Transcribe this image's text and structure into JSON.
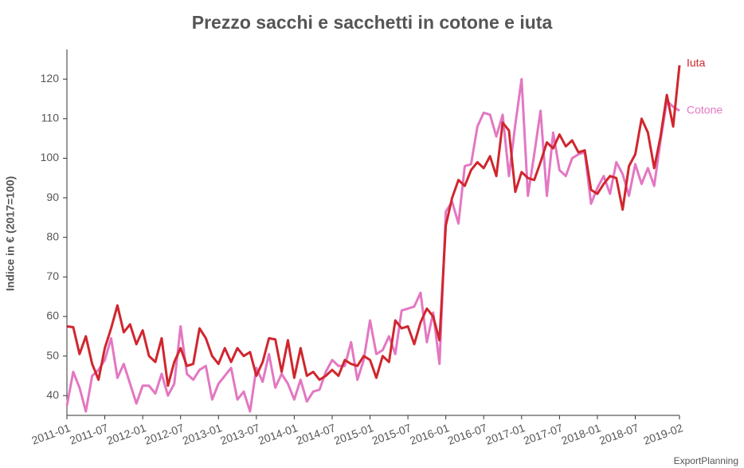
{
  "chart_data": {
    "type": "line",
    "title": "Prezzo sacchi e sacchetti in cotone e iuta",
    "y_label": "Indice in € (2017=100)",
    "credit": "ExportPlanning",
    "categories": [
      "2011-01",
      null,
      null,
      null,
      null,
      null,
      "2011-07",
      null,
      null,
      null,
      null,
      null,
      "2012-01",
      null,
      null,
      null,
      null,
      null,
      "2012-07",
      null,
      null,
      null,
      null,
      null,
      "2013-01",
      null,
      null,
      null,
      null,
      null,
      "2013-07",
      null,
      null,
      null,
      null,
      null,
      "2014-01",
      null,
      null,
      null,
      null,
      null,
      "2014-07",
      null,
      null,
      null,
      null,
      null,
      "2015-01",
      null,
      null,
      null,
      null,
      null,
      "2015-07",
      null,
      null,
      null,
      null,
      null,
      "2016-01",
      null,
      null,
      null,
      null,
      null,
      "2016-07",
      null,
      null,
      null,
      null,
      null,
      "2017-01",
      null,
      null,
      null,
      null,
      null,
      "2017-07",
      null,
      null,
      null,
      null,
      null,
      "2018-01",
      null,
      null,
      null,
      null,
      null,
      "2018-07",
      null,
      null,
      null,
      null,
      null,
      null,
      "2019-02"
    ],
    "series": [
      {
        "name": "Cotone",
        "color": "#e377c2",
        "values": [
          37.5,
          46,
          42,
          36,
          45,
          46.5,
          49,
          54.5,
          44.5,
          48,
          43,
          38,
          42.5,
          42.5,
          40.5,
          45.5,
          40,
          43,
          57.5,
          45.5,
          44,
          46.5,
          47.5,
          39,
          43,
          45,
          47,
          39,
          41,
          36,
          47,
          43.5,
          50.5,
          42,
          45.5,
          43,
          39,
          44,
          38.5,
          41,
          41.5,
          46,
          49,
          47.5,
          47.5,
          53.5,
          44,
          49,
          59,
          50.5,
          51.5,
          55,
          50.5,
          61.5,
          62,
          62.5,
          66,
          53.5,
          61,
          48,
          86.5,
          89,
          83.5,
          98,
          98.5,
          108,
          111.5,
          111,
          105.5,
          111,
          95.5,
          108.5,
          120,
          90.5,
          101,
          112,
          90.5,
          106.5,
          97,
          95.5,
          100,
          101,
          101.5,
          88.5,
          92.5,
          95.5,
          91,
          99,
          96,
          90.5,
          98.5,
          93.5,
          97.5,
          93,
          104.5,
          114.5,
          113,
          112
        ]
      },
      {
        "name": "Iuta",
        "color": "#d0262e",
        "values": [
          57.5,
          57.3,
          50.5,
          55,
          48,
          44,
          52,
          57,
          62.8,
          56,
          58,
          53,
          56.5,
          50,
          48.5,
          54.5,
          42.5,
          48.5,
          52,
          47.5,
          48,
          57,
          54.5,
          50,
          48,
          52,
          48.5,
          52,
          50,
          51,
          45,
          48.5,
          54.5,
          54.2,
          46,
          54,
          44.5,
          52,
          45,
          46,
          44,
          45,
          46.5,
          45,
          49,
          48,
          47.5,
          50,
          49,
          44.5,
          50,
          48.5,
          59,
          57,
          57.5,
          53,
          58.5,
          62,
          60,
          54,
          83,
          90,
          94.5,
          93,
          97,
          99,
          97.5,
          100.5,
          95.5,
          109,
          107,
          91.5,
          96.5,
          95,
          94.5,
          99,
          104,
          102.5,
          106,
          103,
          104.5,
          101.5,
          102,
          92,
          91,
          93.5,
          95.5,
          95,
          87,
          98,
          101,
          110,
          106.5,
          97.5,
          105.5,
          116,
          108,
          123.5
        ]
      }
    ],
    "ylim": [
      35,
      127.5
    ],
    "yticks": [
      40,
      50,
      60,
      70,
      80,
      90,
      100,
      110,
      120
    ],
    "grid": false
  }
}
